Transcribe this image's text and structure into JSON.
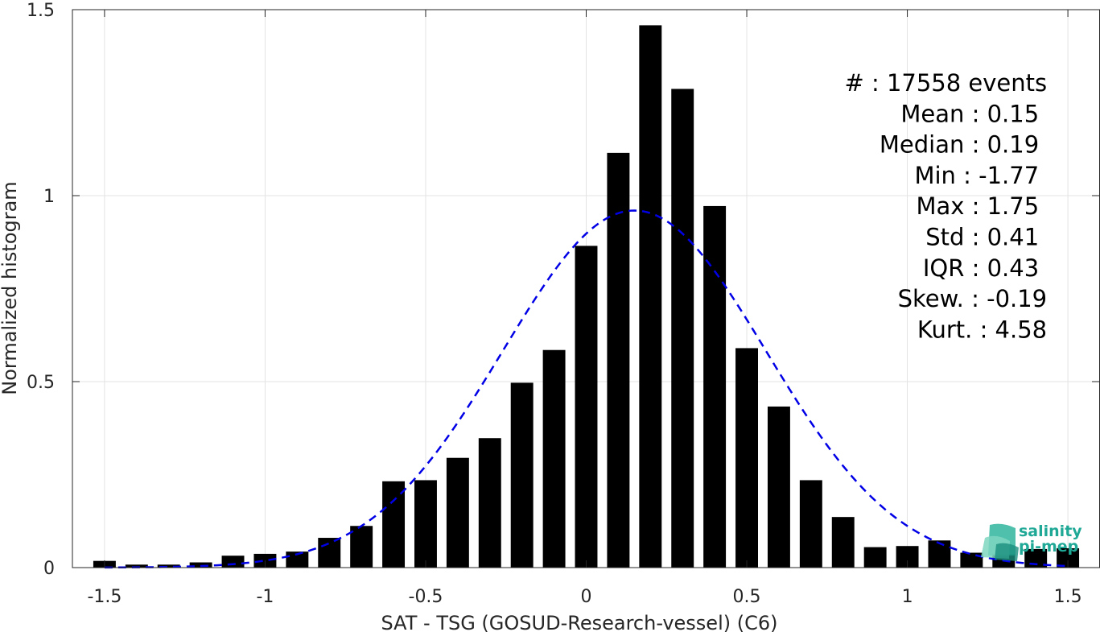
{
  "chart_data": {
    "type": "bar",
    "xlabel": "SAT - TSG (GOSUD-Research-vessel) (C6)",
    "ylabel": "Normalized histogram",
    "xlim": [
      -1.6,
      1.6
    ],
    "ylim": [
      0,
      1.5
    ],
    "xticks": [
      -1.5,
      -1,
      -0.5,
      0,
      0.5,
      1,
      1.5
    ],
    "xtick_labels": [
      "-1.5",
      "-1",
      "-0.5",
      "0",
      "0.5",
      "1",
      "1.5"
    ],
    "yticks": [
      0,
      0.5,
      1,
      1.5
    ],
    "ytick_labels": [
      "0",
      "0.5",
      "1",
      "1.5"
    ],
    "grid": true,
    "bar_width": 0.07,
    "bar_color": "#000000",
    "bins": [
      -1.5,
      -1.4,
      -1.3,
      -1.2,
      -1.1,
      -1.0,
      -0.9,
      -0.8,
      -0.7,
      -0.6,
      -0.5,
      -0.4,
      -0.3,
      -0.2,
      -0.1,
      0.0,
      0.1,
      0.2,
      0.3,
      0.4,
      0.5,
      0.6,
      0.7,
      0.8,
      0.9,
      1.0,
      1.1,
      1.2,
      1.3,
      1.4,
      1.5
    ],
    "values": [
      0.018,
      0.008,
      0.008,
      0.014,
      0.032,
      0.037,
      0.043,
      0.08,
      0.112,
      0.232,
      0.235,
      0.295,
      0.348,
      0.497,
      0.585,
      0.865,
      1.115,
      1.458,
      1.287,
      0.972,
      0.59,
      0.433,
      0.235,
      0.136,
      0.055,
      0.058,
      0.073,
      0.04,
      0.036,
      0.05,
      0.052
    ],
    "fit": {
      "type": "gaussian",
      "mean": 0.15,
      "std": 0.41,
      "peak": 0.96,
      "color": "#0000e6",
      "style": "dashed"
    },
    "annotation_lines": [
      {
        "text": "#  : 17558 events",
        "anchor": "end",
        "x": 1.435
      },
      {
        "text": "Mean : 0.15",
        "anchor": "end",
        "x": 1.41
      },
      {
        "text": "Median : 0.19",
        "anchor": "end",
        "x": 1.41
      },
      {
        "text": "Min : -1.77",
        "anchor": "end",
        "x": 1.41
      },
      {
        "text": "Max : 1.75",
        "anchor": "end",
        "x": 1.41
      },
      {
        "text": "Std : 0.41",
        "anchor": "end",
        "x": 1.41
      },
      {
        "text": "IQR : 0.43",
        "anchor": "end",
        "x": 1.41
      },
      {
        "text": "Skew. : -0.19",
        "anchor": "end",
        "x": 1.435
      },
      {
        "text": "Kurt. : 4.58",
        "anchor": "end",
        "x": 1.435
      }
    ]
  },
  "logo": {
    "line1": "salinity",
    "line2": "pi-mep",
    "color": "#1fa896"
  }
}
